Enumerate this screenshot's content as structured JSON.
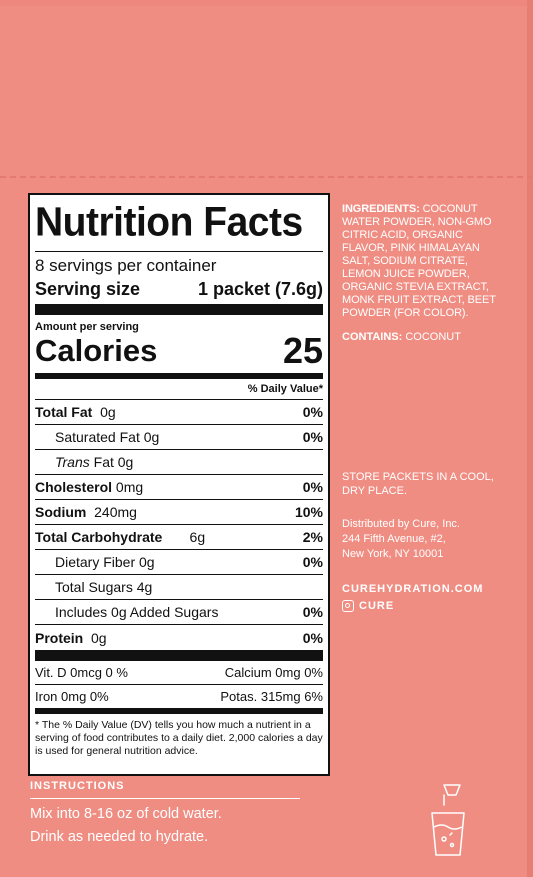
{
  "nutrition": {
    "title": "Nutrition Facts",
    "servings_per_container": "8 servings per container",
    "serving_size_label": "Serving size",
    "serving_size_value": "1 packet (7.6g)",
    "amount_per_serving": "Amount per serving",
    "calories_label": "Calories",
    "calories_value": "25",
    "dv_header": "% Daily Value*",
    "rows": [
      {
        "label": "Total Fat",
        "amount": "0g",
        "pct": "0%"
      },
      {
        "label": "Saturated Fat 0g",
        "amount": "",
        "pct": "0%"
      },
      {
        "label_italic": "Trans",
        "label": "Fat 0g",
        "amount": "",
        "pct": ""
      },
      {
        "label": "Cholesterol",
        "amount": "0mg",
        "pct": "0%"
      },
      {
        "label": "Sodium",
        "amount": "240mg",
        "pct": "10%"
      },
      {
        "label": "Total Carbohydrate",
        "amount": "6g",
        "pct": "2%"
      },
      {
        "label": "Dietary Fiber 0g",
        "amount": "",
        "pct": "0%"
      },
      {
        "label": "Total Sugars 4g",
        "amount": "",
        "pct": ""
      },
      {
        "label": "Includes 0g Added Sugars",
        "amount": "",
        "pct": "0%"
      },
      {
        "label": "Protein",
        "amount": "0g",
        "pct": "0%"
      }
    ],
    "vitamins": [
      {
        "left": "Vit. D 0mcg 0 %",
        "right": "Calcium 0mg 0%"
      },
      {
        "left": "Iron 0mg 0%",
        "right": "Potas. 315mg 6%"
      }
    ],
    "footnote": "* The % Daily Value (DV) tells you how much a nutrient in a serving of food contributes to a daily diet. 2,000 calories a day is used for general nutrition advice."
  },
  "side": {
    "ingredients_label": "INGREDIENTS:",
    "ingredients_text": "COCONUT WATER POWDER, NON-GMO CITRIC ACID, ORGANIC FLAVOR, PINK HIMALAYAN SALT, SODIUM CITRATE, LEMON JUICE POWDER, ORGANIC STEVIA EXTRACT, MONK FRUIT EXTRACT, BEET POWDER (FOR COLOR).",
    "contains_label": "CONTAINS:",
    "contains_text": "COCONUT",
    "storage": "STORE PACKETS IN A COOL, DRY PLACE.",
    "distributor_line1": "Distributed by Cure, Inc.",
    "distributor_line2": "244 Fifth Avenue, #2,",
    "distributor_line3": "New York, NY 10001",
    "website": "CUREHYDRATION.COM",
    "instagram": "CURE"
  },
  "instructions": {
    "title": "INSTRUCTIONS",
    "line1": "Mix into 8-16 oz of cold water.",
    "line2": "Drink as needed to hydrate."
  },
  "colors": {
    "box": "#f08d83",
    "label_bg": "#ffffff",
    "ink": "#111111"
  }
}
